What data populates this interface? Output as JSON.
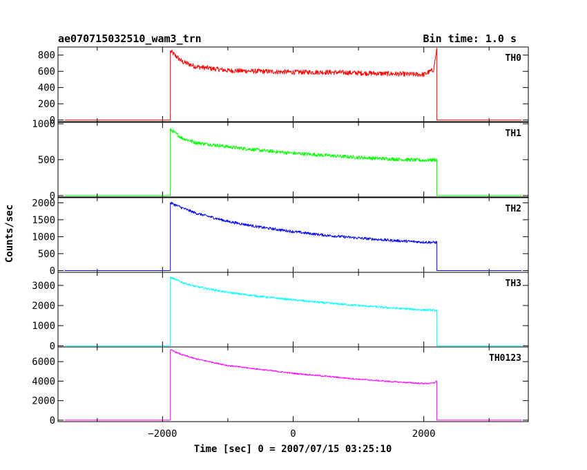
{
  "chart_data": {
    "type": "line",
    "title": "ae070715032510_wam3_trn",
    "bin_time_label": "Bin time: 1.0 s",
    "xlabel": "Time [sec] 0 = 2007/07/15 03:25:10",
    "ylabel": "Counts/sec",
    "xlim": [
      -3600,
      3600
    ],
    "x_ticks": [
      -2000,
      0,
      2000
    ],
    "x_tick_labels": [
      "−2000",
      "0",
      "2000"
    ],
    "grid": false,
    "panels": [
      {
        "name": "TH0",
        "color": "#ff0000",
        "ylim": [
          -20,
          900
        ],
        "y_ticks": [
          0,
          200,
          400,
          600,
          800
        ],
        "y_tick_labels": [
          "0",
          "200",
          "400",
          "600",
          "800"
        ],
        "on_time": -1880,
        "off_time": 2200,
        "baseline": 0,
        "points": [
          [
            -1880,
            850
          ],
          [
            -1700,
            720
          ],
          [
            -1500,
            660
          ],
          [
            -1000,
            610
          ],
          [
            -500,
            600
          ],
          [
            0,
            590
          ],
          [
            500,
            590
          ],
          [
            1000,
            580
          ],
          [
            1500,
            570
          ],
          [
            2000,
            560
          ],
          [
            2150,
            620
          ],
          [
            2200,
            880
          ]
        ],
        "noise": 30
      },
      {
        "name": "TH1",
        "color": "#00ff00",
        "ylim": [
          -20,
          1020
        ],
        "y_ticks": [
          0,
          500,
          1000
        ],
        "y_tick_labels": [
          "0",
          "500",
          "1000"
        ],
        "on_time": -1880,
        "off_time": 2200,
        "baseline": 0,
        "points": [
          [
            -1880,
            920
          ],
          [
            -1700,
            800
          ],
          [
            -1500,
            740
          ],
          [
            -1000,
            680
          ],
          [
            -500,
            630
          ],
          [
            0,
            590
          ],
          [
            500,
            560
          ],
          [
            1000,
            530
          ],
          [
            1500,
            510
          ],
          [
            2000,
            490
          ],
          [
            2200,
            500
          ]
        ],
        "noise": 25
      },
      {
        "name": "TH2",
        "color": "#0000ff",
        "ylim": [
          -50,
          2150
        ],
        "y_ticks": [
          0,
          500,
          1000,
          1500,
          2000
        ],
        "y_tick_labels": [
          "0",
          "500",
          "1000",
          "1500",
          "2000"
        ],
        "on_time": -1880,
        "off_time": 2200,
        "baseline": 0,
        "points": [
          [
            -1880,
            2000
          ],
          [
            -1700,
            1850
          ],
          [
            -1500,
            1700
          ],
          [
            -1000,
            1450
          ],
          [
            -500,
            1280
          ],
          [
            0,
            1150
          ],
          [
            500,
            1040
          ],
          [
            1000,
            960
          ],
          [
            1500,
            890
          ],
          [
            2000,
            840
          ],
          [
            2200,
            830
          ]
        ],
        "noise": 40
      },
      {
        "name": "TH3",
        "color": "#00ffff",
        "ylim": [
          -60,
          3650
        ],
        "y_ticks": [
          0,
          1000,
          2000,
          3000
        ],
        "y_tick_labels": [
          "0",
          "1000",
          "2000",
          "3000"
        ],
        "on_time": -1880,
        "off_time": 2200,
        "baseline": 0,
        "points": [
          [
            -1880,
            3400
          ],
          [
            -1700,
            3150
          ],
          [
            -1500,
            2950
          ],
          [
            -1000,
            2650
          ],
          [
            -500,
            2450
          ],
          [
            0,
            2280
          ],
          [
            500,
            2130
          ],
          [
            1000,
            2000
          ],
          [
            1500,
            1880
          ],
          [
            2000,
            1780
          ],
          [
            2200,
            1760
          ]
        ],
        "noise": 50
      },
      {
        "name": "TH0123",
        "color": "#ff00ff",
        "ylim": [
          -150,
          7500
        ],
        "y_ticks": [
          0,
          2000,
          4000,
          6000
        ],
        "y_tick_labels": [
          "0",
          "2000",
          "4000",
          "6000"
        ],
        "on_time": -1880,
        "off_time": 2200,
        "baseline": 0,
        "points": [
          [
            -1880,
            7200
          ],
          [
            -1700,
            6700
          ],
          [
            -1500,
            6300
          ],
          [
            -1000,
            5600
          ],
          [
            -500,
            5200
          ],
          [
            0,
            4800
          ],
          [
            500,
            4500
          ],
          [
            1000,
            4200
          ],
          [
            1500,
            3950
          ],
          [
            2000,
            3750
          ],
          [
            2150,
            3800
          ],
          [
            2200,
            4000
          ]
        ],
        "noise": 70
      }
    ]
  }
}
